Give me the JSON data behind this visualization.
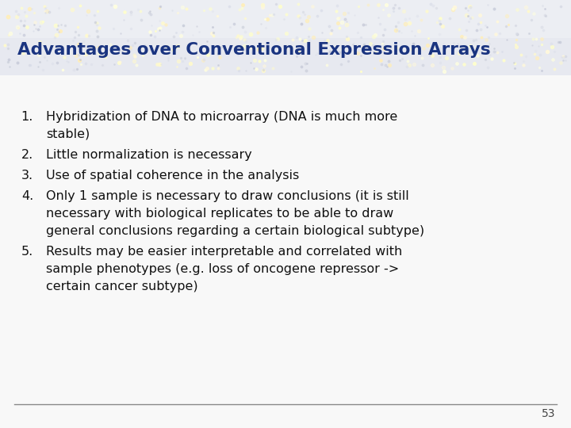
{
  "title": "Advantages over Conventional Expression Arrays",
  "title_color": "#1a3480",
  "title_fontsize": 15.5,
  "body_fontsize": 11.5,
  "slide_bg": "#f8f8f8",
  "header_bg": "#e8eaf0",
  "items": [
    {
      "number": "1.",
      "lines": [
        "Hybridization of DNA to microarray (DNA is much more",
        "stable)"
      ]
    },
    {
      "number": "2.",
      "lines": [
        "Little normalization is necessary"
      ]
    },
    {
      "number": "3.",
      "lines": [
        "Use of spatial coherence in the analysis"
      ]
    },
    {
      "number": "4.",
      "lines": [
        "Only 1 sample is necessary to draw conclusions (it is still",
        "necessary with biological replicates to be able to draw",
        "general conclusions regarding a certain biological subtype)"
      ]
    },
    {
      "number": "5.",
      "lines": [
        "Results may be easier interpretable and correlated with",
        "sample phenotypes (e.g. loss of oncogene repressor ->",
        "certain cancer subtype)"
      ]
    }
  ],
  "footer_line_color": "#888888",
  "page_number": "53",
  "page_number_color": "#444444",
  "dot_colors_bright": [
    "#fffacd",
    "#ffeebb",
    "#ffffcc",
    "#fff8dc",
    "#ffffe0"
  ],
  "dot_colors_dim": [
    "#d8dce8",
    "#c8ccd8",
    "#dde0ea",
    "#c0c4d4"
  ],
  "body_color": "#111111"
}
